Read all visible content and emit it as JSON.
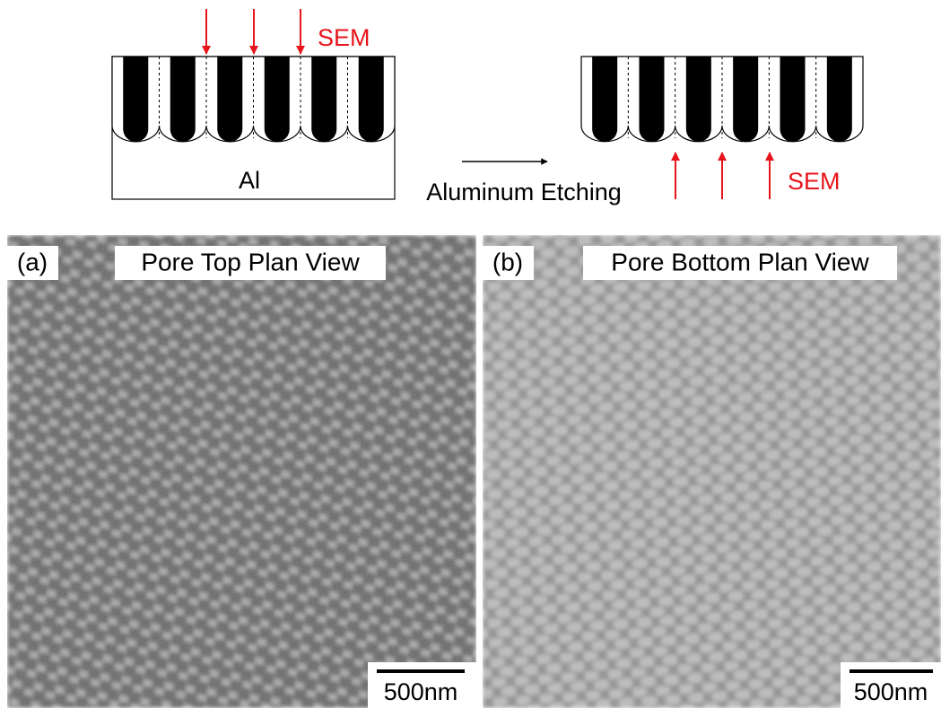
{
  "schematic": {
    "left": {
      "probe_label": "SEM",
      "substrate_label": "Al"
    },
    "process_label": "Aluminum Etching",
    "right": {
      "probe_label": "SEM"
    }
  },
  "panels": [
    {
      "label": "(a)",
      "title": "Pore Top Plan View",
      "scale_bar": "500nm"
    },
    {
      "label": "(b)",
      "title": "Pore Bottom Plan View",
      "scale_bar": "500nm"
    }
  ]
}
